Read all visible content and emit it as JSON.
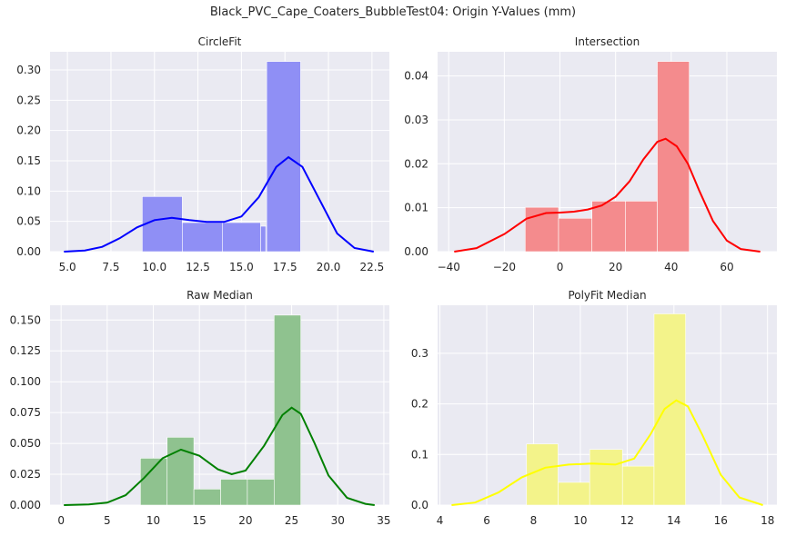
{
  "title": "Black_PVC_Cape_Coaters_BubbleTest04: Origin Y-Values (mm)",
  "chart_data": [
    {
      "type": "histogram",
      "title": "CircleFit",
      "xlim": [
        4,
        23.5
      ],
      "ylim": [
        0,
        0.33
      ],
      "xticks": [
        5.0,
        7.5,
        10.0,
        12.5,
        15.0,
        17.5,
        20.0,
        22.5
      ],
      "xtick_labels": [
        "5.0",
        "7.5",
        "10.0",
        "12.5",
        "15.0",
        "17.5",
        "20.0",
        "22.5"
      ],
      "yticks": [
        0.0,
        0.05,
        0.1,
        0.15,
        0.2,
        0.25,
        0.3
      ],
      "ytick_labels": [
        "0.00",
        "0.05",
        "0.10",
        "0.15",
        "0.20",
        "0.25",
        "0.30"
      ],
      "bins": [
        {
          "x0": 9.3,
          "x1": 11.6,
          "value": 0.091
        },
        {
          "x0": 11.6,
          "x1": 13.9,
          "value": 0.048
        },
        {
          "x0": 13.9,
          "x1": 16.1,
          "value": 0.048
        },
        {
          "x0": 16.1,
          "x1": 16.4,
          "value": 0.042
        },
        {
          "x0": 16.4,
          "x1": 16.45,
          "value": 0.042
        },
        {
          "x0": 16.45,
          "x1": 18.4,
          "value": 0.314
        }
      ],
      "kde": [
        [
          4.8,
          0.0
        ],
        [
          6.0,
          0.002
        ],
        [
          7.0,
          0.008
        ],
        [
          8.0,
          0.022
        ],
        [
          9.0,
          0.04
        ],
        [
          10.0,
          0.052
        ],
        [
          11.0,
          0.056
        ],
        [
          12.0,
          0.052
        ],
        [
          13.0,
          0.049
        ],
        [
          14.0,
          0.049
        ],
        [
          15.0,
          0.058
        ],
        [
          16.0,
          0.09
        ],
        [
          17.0,
          0.14
        ],
        [
          17.7,
          0.156
        ],
        [
          18.5,
          0.14
        ],
        [
          19.5,
          0.085
        ],
        [
          20.5,
          0.03
        ],
        [
          21.5,
          0.006
        ],
        [
          22.6,
          0.0
        ]
      ],
      "bar_color": "#8f8ff5",
      "line_color": "#0000ff"
    },
    {
      "type": "histogram",
      "title": "Intersection",
      "xlim": [
        -44,
        78
      ],
      "ylim": [
        0,
        0.0455
      ],
      "xticks": [
        -40,
        -20,
        0,
        20,
        40,
        60
      ],
      "xtick_labels": [
        "−40",
        "−20",
        "0",
        "20",
        "40",
        "60"
      ],
      "yticks": [
        0.0,
        0.01,
        0.02,
        0.03,
        0.04
      ],
      "ytick_labels": [
        "0.00",
        "0.01",
        "0.02",
        "0.03",
        "0.04"
      ],
      "bins": [
        {
          "x0": -12.5,
          "x1": -0.5,
          "value": 0.0101
        },
        {
          "x0": -0.5,
          "x1": 11.5,
          "value": 0.0076
        },
        {
          "x0": 11.5,
          "x1": 23.5,
          "value": 0.0115
        },
        {
          "x0": 23.5,
          "x1": 35.0,
          "value": 0.0115
        },
        {
          "x0": 35.0,
          "x1": 46.5,
          "value": 0.0433
        }
      ],
      "kde": [
        [
          -38,
          0.0
        ],
        [
          -30,
          0.0008
        ],
        [
          -20,
          0.004
        ],
        [
          -12,
          0.0075
        ],
        [
          -5,
          0.0088
        ],
        [
          0,
          0.0089
        ],
        [
          5,
          0.0091
        ],
        [
          10,
          0.0096
        ],
        [
          15,
          0.0105
        ],
        [
          20,
          0.0125
        ],
        [
          25,
          0.016
        ],
        [
          30,
          0.021
        ],
        [
          35,
          0.025
        ],
        [
          38,
          0.0257
        ],
        [
          42,
          0.024
        ],
        [
          46,
          0.02
        ],
        [
          50,
          0.014
        ],
        [
          55,
          0.007
        ],
        [
          60,
          0.0025
        ],
        [
          65,
          0.0006
        ],
        [
          72,
          0.0
        ]
      ],
      "bar_color": "#f48b8d",
      "line_color": "#ff0000"
    },
    {
      "type": "histogram",
      "title": "Raw Median",
      "xlim": [
        -1.2,
        35.6
      ],
      "ylim": [
        0,
        0.162
      ],
      "xticks": [
        0,
        5,
        10,
        15,
        20,
        25,
        30,
        35
      ],
      "xtick_labels": [
        "0",
        "5",
        "10",
        "15",
        "20",
        "25",
        "30",
        "35"
      ],
      "yticks": [
        0.0,
        0.025,
        0.05,
        0.075,
        0.1,
        0.125,
        0.15
      ],
      "ytick_labels": [
        "0.000",
        "0.025",
        "0.050",
        "0.075",
        "0.100",
        "0.125",
        "0.150"
      ],
      "bins": [
        {
          "x0": 8.6,
          "x1": 11.5,
          "value": 0.038
        },
        {
          "x0": 11.5,
          "x1": 14.4,
          "value": 0.055
        },
        {
          "x0": 14.4,
          "x1": 17.3,
          "value": 0.013
        },
        {
          "x0": 17.3,
          "x1": 20.2,
          "value": 0.021
        },
        {
          "x0": 20.2,
          "x1": 23.1,
          "value": 0.021
        },
        {
          "x0": 23.1,
          "x1": 26.0,
          "value": 0.154
        }
      ],
      "kde": [
        [
          0.3,
          0.0
        ],
        [
          3,
          0.0005
        ],
        [
          5,
          0.002
        ],
        [
          7,
          0.008
        ],
        [
          9,
          0.022
        ],
        [
          11,
          0.038
        ],
        [
          13,
          0.045
        ],
        [
          15,
          0.04
        ],
        [
          17,
          0.029
        ],
        [
          18.5,
          0.025
        ],
        [
          20,
          0.028
        ],
        [
          22,
          0.048
        ],
        [
          24,
          0.073
        ],
        [
          25,
          0.079
        ],
        [
          26,
          0.074
        ],
        [
          27.5,
          0.05
        ],
        [
          29,
          0.024
        ],
        [
          31,
          0.006
        ],
        [
          33,
          0.001
        ],
        [
          34,
          0.0
        ]
      ],
      "bar_color": "#8fc28f",
      "line_color": "#008000"
    },
    {
      "type": "histogram",
      "title": "PolyFit Median",
      "xlim": [
        3.9,
        18.4
      ],
      "ylim": [
        0,
        0.395
      ],
      "xticks": [
        4,
        6,
        8,
        10,
        12,
        14,
        16,
        18
      ],
      "xtick_labels": [
        "4",
        "6",
        "8",
        "10",
        "12",
        "14",
        "16",
        "18"
      ],
      "yticks": [
        0.0,
        0.1,
        0.2,
        0.3
      ],
      "ytick_labels": [
        "0.0",
        "0.1",
        "0.2",
        "0.3"
      ],
      "bins": [
        {
          "x0": 7.7,
          "x1": 9.05,
          "value": 0.121
        },
        {
          "x0": 9.05,
          "x1": 10.4,
          "value": 0.045
        },
        {
          "x0": 10.4,
          "x1": 11.8,
          "value": 0.11
        },
        {
          "x0": 11.8,
          "x1": 13.15,
          "value": 0.077
        },
        {
          "x0": 13.15,
          "x1": 14.5,
          "value": 0.378
        }
      ],
      "kde": [
        [
          4.5,
          0.0
        ],
        [
          5.5,
          0.005
        ],
        [
          6.5,
          0.025
        ],
        [
          7.5,
          0.055
        ],
        [
          8.5,
          0.074
        ],
        [
          9.5,
          0.08
        ],
        [
          10.5,
          0.082
        ],
        [
          11.5,
          0.08
        ],
        [
          12.3,
          0.092
        ],
        [
          13.0,
          0.14
        ],
        [
          13.6,
          0.19
        ],
        [
          14.1,
          0.207
        ],
        [
          14.6,
          0.195
        ],
        [
          15.2,
          0.14
        ],
        [
          16.0,
          0.06
        ],
        [
          16.8,
          0.015
        ],
        [
          17.8,
          0.0
        ]
      ],
      "bar_color": "#f3f38a",
      "line_color": "#ffff00"
    }
  ]
}
